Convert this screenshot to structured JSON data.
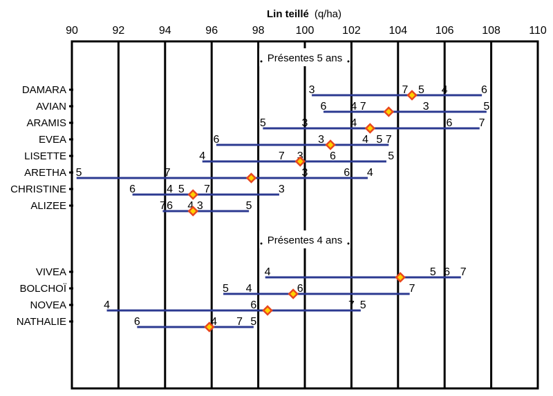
{
  "chart_data": {
    "type": "range",
    "title": "Lin teillé",
    "unit": "(q/ha)",
    "xlim": [
      90,
      110
    ],
    "x_ticks": [
      90,
      92,
      94,
      96,
      98,
      100,
      102,
      104,
      106,
      108,
      110
    ],
    "grid": "vertical",
    "colors": {
      "range_line": "#2b3990",
      "mean_marker_fill": "#ffd200",
      "mean_marker_edge": "#e8471e",
      "grid": "#000000"
    },
    "sections": [
      {
        "label": "Présentes 5 ans",
        "varieties": [
          {
            "name": "DAMARA",
            "min": 100.3,
            "max": 107.6,
            "mean": 104.6,
            "years": [
              {
                "label": "3",
                "x": 100.3
              },
              {
                "label": "7",
                "x": 104.3
              },
              {
                "label": "5",
                "x": 105.0
              },
              {
                "label": "4",
                "x": 106.0
              },
              {
                "label": "6",
                "x": 107.7
              }
            ]
          },
          {
            "name": "AVIAN",
            "min": 100.8,
            "max": 107.8,
            "mean": 103.6,
            "years": [
              {
                "label": "6",
                "x": 100.8
              },
              {
                "label": "4",
                "x": 102.1
              },
              {
                "label": "7",
                "x": 102.5
              },
              {
                "label": "3",
                "x": 105.2
              },
              {
                "label": "5",
                "x": 107.8
              }
            ]
          },
          {
            "name": "ARAMIS",
            "min": 98.2,
            "max": 107.5,
            "mean": 102.8,
            "years": [
              {
                "label": "5",
                "x": 98.2
              },
              {
                "label": "3",
                "x": 100.0
              },
              {
                "label": "4",
                "x": 102.1
              },
              {
                "label": "6",
                "x": 106.2
              },
              {
                "label": "7",
                "x": 107.6
              }
            ]
          },
          {
            "name": "EVEA",
            "min": 96.2,
            "max": 103.6,
            "mean": 101.1,
            "years": [
              {
                "label": "6",
                "x": 96.2
              },
              {
                "label": "3",
                "x": 100.7
              },
              {
                "label": "4",
                "x": 102.6
              },
              {
                "label": "5",
                "x": 103.2
              },
              {
                "label": "7",
                "x": 103.6
              }
            ]
          },
          {
            "name": "LISETTE",
            "min": 95.6,
            "max": 103.5,
            "mean": 99.8,
            "years": [
              {
                "label": "4",
                "x": 95.6
              },
              {
                "label": "7",
                "x": 99.0
              },
              {
                "label": "3",
                "x": 99.8
              },
              {
                "label": "6",
                "x": 101.2
              },
              {
                "label": "5",
                "x": 103.7
              }
            ]
          },
          {
            "name": "ARETHA",
            "min": 90.2,
            "max": 102.7,
            "mean": 97.7,
            "years": [
              {
                "label": "5",
                "x": 90.3
              },
              {
                "label": "7",
                "x": 94.1
              },
              {
                "label": "3",
                "x": 100.0
              },
              {
                "label": "6",
                "x": 101.8
              },
              {
                "label": "4",
                "x": 102.8
              }
            ]
          },
          {
            "name": "CHRISTINE",
            "min": 92.6,
            "max": 98.9,
            "mean": 95.2,
            "years": [
              {
                "label": "6",
                "x": 92.6
              },
              {
                "label": "4",
                "x": 94.2
              },
              {
                "label": "5",
                "x": 94.7
              },
              {
                "label": "7",
                "x": 95.8
              },
              {
                "label": "3",
                "x": 99.0
              }
            ]
          },
          {
            "name": "ALIZEE",
            "min": 93.9,
            "max": 97.6,
            "mean": 95.2,
            "years": [
              {
                "label": "7",
                "x": 93.9
              },
              {
                "label": "6",
                "x": 94.2
              },
              {
                "label": "4",
                "x": 95.1
              },
              {
                "label": "3",
                "x": 95.5
              },
              {
                "label": "5",
                "x": 97.6
              }
            ]
          }
        ]
      },
      {
        "label": "Présentes 4 ans",
        "varieties": [
          {
            "name": "VIVEA",
            "min": 98.3,
            "max": 106.7,
            "mean": 104.1,
            "years": [
              {
                "label": "4",
                "x": 98.4
              },
              {
                "label": "5",
                "x": 105.5
              },
              {
                "label": "6",
                "x": 106.1
              },
              {
                "label": "7",
                "x": 106.8
              }
            ]
          },
          {
            "name": "BOLCHOÏ",
            "min": 96.5,
            "max": 104.5,
            "mean": 99.5,
            "years": [
              {
                "label": "5",
                "x": 96.6
              },
              {
                "label": "4",
                "x": 97.6
              },
              {
                "label": "6",
                "x": 99.8
              },
              {
                "label": "7",
                "x": 104.6
              }
            ]
          },
          {
            "name": "NOVEA",
            "min": 91.5,
            "max": 102.4,
            "mean": 98.4,
            "years": [
              {
                "label": "4",
                "x": 91.5
              },
              {
                "label": "6",
                "x": 97.8
              },
              {
                "label": "7",
                "x": 102.0
              },
              {
                "label": "5",
                "x": 102.5
              }
            ]
          },
          {
            "name": "NATHALIE",
            "min": 92.8,
            "max": 97.8,
            "mean": 95.9,
            "years": [
              {
                "label": "6",
                "x": 92.8
              },
              {
                "label": "4",
                "x": 96.1
              },
              {
                "label": "7",
                "x": 97.2
              },
              {
                "label": "5",
                "x": 97.8
              }
            ]
          }
        ]
      }
    ]
  }
}
